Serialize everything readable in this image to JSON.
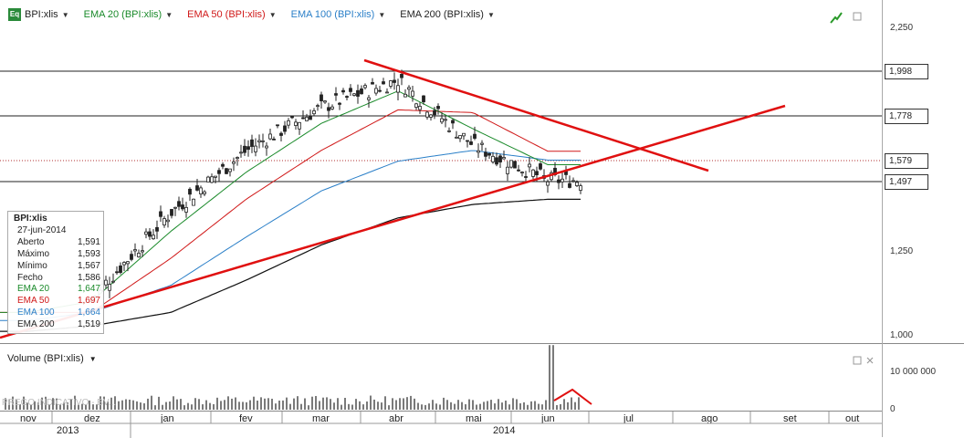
{
  "legend": {
    "symbol_icon": "Eq",
    "items": [
      {
        "label": "BPI:xlis",
        "color": "#222222"
      },
      {
        "label": "EMA 20 (BPI:xlis)",
        "color": "#1a8a2a"
      },
      {
        "label": "EMA 50 (BPI:xlis)",
        "color": "#d01818"
      },
      {
        "label": "EMA 100 (BPI:xlis)",
        "color": "#2a7fc8"
      },
      {
        "label": "EMA 200 (BPI:xlis)",
        "color": "#222222"
      }
    ]
  },
  "info": {
    "title": "BPI:xlis",
    "date": "27-jun-2014",
    "rows": [
      {
        "label": "Aberto",
        "value": "1,591",
        "color": "#222222"
      },
      {
        "label": "Máximo",
        "value": "1,593",
        "color": "#222222"
      },
      {
        "label": "Mínimo",
        "value": "1,567",
        "color": "#222222"
      },
      {
        "label": "Fecho",
        "value": "1,586",
        "color": "#222222"
      },
      {
        "label": "EMA 20",
        "value": "1,647",
        "color": "#1a8a2a"
      },
      {
        "label": "EMA 50",
        "value": "1,697",
        "color": "#d01818"
      },
      {
        "label": "EMA 100",
        "value": "1,664",
        "color": "#2a7fc8"
      },
      {
        "label": "EMA 200",
        "value": "1,519",
        "color": "#222222"
      }
    ]
  },
  "axis": {
    "price_ticks": [
      "2,250",
      "1,250",
      "1,000"
    ],
    "price_boxes": [
      "1,998",
      "1,778",
      "1,579",
      "1,497"
    ],
    "volume_ticks": [
      "10 000 000",
      "0"
    ],
    "months": [
      "nov",
      "dez",
      "jan",
      "fev",
      "mar",
      "abr",
      "mai",
      "jun",
      "jul",
      "ago",
      "set",
      "out"
    ],
    "years": [
      "2013",
      "2014"
    ]
  },
  "volume": {
    "label": "Volume (BPI:xlis)"
  },
  "watermark": "PREGO INDICATIVO - BV...",
  "chart_data": {
    "type": "line",
    "ylim": [
      1.0,
      2.3
    ],
    "log_scale": false,
    "grid": false,
    "legend_position": "top-left",
    "horizontal_levels": [
      1.998,
      1.778,
      1.579,
      1.497
    ],
    "x": [
      "nov-2013",
      "dez-2013",
      "jan-2014",
      "fev-2014",
      "mar-2014",
      "abr-2014",
      "mai-2014",
      "jun-2014"
    ],
    "series": [
      {
        "name": "BPI:xlis",
        "values": [
          1.06,
          1.15,
          1.47,
          1.7,
          1.86,
          1.96,
          1.72,
          1.59
        ]
      },
      {
        "name": "EMA 20 (BPI:xlis)",
        "values": [
          1.1,
          1.14,
          1.4,
          1.62,
          1.8,
          1.92,
          1.78,
          1.647
        ]
      },
      {
        "name": "EMA 50 (BPI:xlis)",
        "values": [
          1.1,
          1.1,
          1.3,
          1.52,
          1.7,
          1.85,
          1.84,
          1.697
        ]
      },
      {
        "name": "EMA 100 (BPI:xlis)",
        "values": [
          1.07,
          1.1,
          1.2,
          1.38,
          1.55,
          1.66,
          1.7,
          1.664
        ]
      },
      {
        "name": "EMA 200 (BPI:xlis)",
        "values": [
          1.03,
          1.05,
          1.1,
          1.22,
          1.35,
          1.45,
          1.5,
          1.519
        ]
      }
    ],
    "volume_ylim": [
      0,
      12000000
    ]
  }
}
